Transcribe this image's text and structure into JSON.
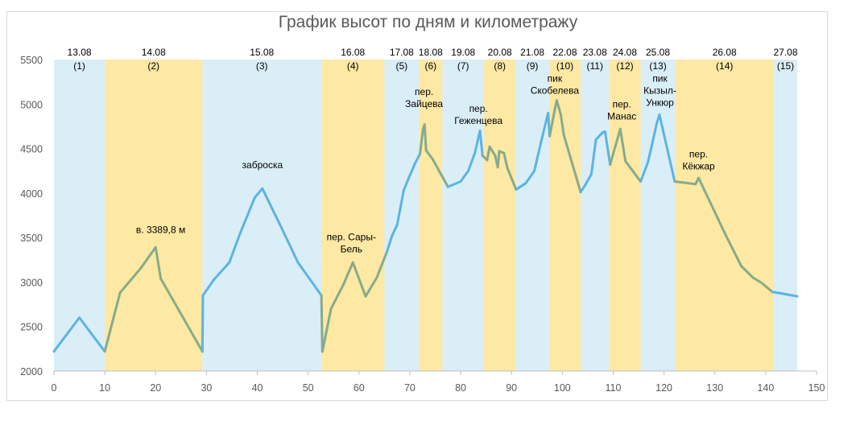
{
  "chart_data": {
    "type": "line",
    "title": "График высот по дням и километражу",
    "xlabel": "",
    "ylabel": "",
    "xlim": [
      0,
      150
    ],
    "ylim": [
      2000,
      5500
    ],
    "x_ticks": [
      0,
      10,
      20,
      30,
      40,
      50,
      60,
      70,
      80,
      90,
      100,
      110,
      120,
      130,
      140,
      150
    ],
    "y_ticks": [
      2000,
      2500,
      3000,
      3500,
      4000,
      4500,
      5000,
      5500
    ],
    "grid": false,
    "colors": {
      "line_blue_day": "#5bb4e0",
      "line_yellow_day": "#86ab8a",
      "band_blue": "#daeef7",
      "band_yellow": "#fde8a4"
    },
    "days": [
      {
        "date": "13.08",
        "num": "(1)",
        "x0": 0,
        "x1": 10,
        "color": "blue"
      },
      {
        "date": "14.08",
        "num": "(2)",
        "x0": 10,
        "x1": 29.2,
        "color": "yellow"
      },
      {
        "date": "15.08",
        "num": "(3)",
        "x0": 29.2,
        "x1": 52.6,
        "color": "blue"
      },
      {
        "date": "16.08",
        "num": "(4)",
        "x0": 52.6,
        "x1": 65,
        "color": "yellow"
      },
      {
        "date": "17.08",
        "num": "(5)",
        "x0": 65,
        "x1": 71.8,
        "color": "blue"
      },
      {
        "date": "18.08",
        "num": "(6)",
        "x0": 71.8,
        "x1": 76.4,
        "color": "yellow"
      },
      {
        "date": "19.08",
        "num": "(7)",
        "x0": 76.4,
        "x1": 84.6,
        "color": "blue"
      },
      {
        "date": "20.08",
        "num": "(8)",
        "x0": 84.6,
        "x1": 90.8,
        "color": "yellow"
      },
      {
        "date": "21.08",
        "num": "(9)",
        "x0": 90.8,
        "x1": 97.4,
        "color": "blue"
      },
      {
        "date": "22.08",
        "num": "(10)",
        "x0": 97.4,
        "x1": 103.6,
        "color": "yellow"
      },
      {
        "date": "23.08",
        "num": "(11)",
        "x0": 103.6,
        "x1": 109.2,
        "color": "blue"
      },
      {
        "date": "24.08",
        "num": "(12)",
        "x0": 109.2,
        "x1": 115.4,
        "color": "yellow"
      },
      {
        "date": "25.08",
        "num": "(13)",
        "x0": 115.4,
        "x1": 122.2,
        "color": "blue"
      },
      {
        "date": "26.08",
        "num": "(14)",
        "x0": 122.2,
        "x1": 141.6,
        "color": "yellow"
      },
      {
        "date": "27.08",
        "num": "(15)",
        "x0": 141.6,
        "x1": 146.2,
        "color": "blue"
      }
    ],
    "series": [
      {
        "values": [
          [
            0,
            2220
          ],
          [
            5,
            2600
          ],
          [
            10,
            2220
          ],
          [
            13,
            2880
          ],
          [
            17,
            3150
          ],
          [
            20,
            3390
          ],
          [
            21,
            3040
          ],
          [
            29.2,
            2220
          ],
          [
            29.3,
            2850
          ],
          [
            31.5,
            3030
          ],
          [
            34.5,
            3220
          ],
          [
            36.5,
            3530
          ],
          [
            39.5,
            3950
          ],
          [
            41,
            4050
          ],
          [
            44.5,
            3640
          ],
          [
            48,
            3220
          ],
          [
            52.6,
            2850
          ],
          [
            52.8,
            2220
          ],
          [
            54.5,
            2700
          ],
          [
            57,
            2980
          ],
          [
            58.8,
            3220
          ],
          [
            61.3,
            2840
          ],
          [
            63.5,
            3050
          ],
          [
            65.5,
            3340
          ],
          [
            66.5,
            3520
          ],
          [
            67.5,
            3640
          ],
          [
            68.8,
            4030
          ],
          [
            69.8,
            4170
          ],
          [
            71,
            4330
          ],
          [
            72,
            4440
          ],
          [
            72.6,
            4720
          ],
          [
            72.9,
            4770
          ],
          [
            73.2,
            4480
          ],
          [
            74.5,
            4380
          ],
          [
            77.5,
            4070
          ],
          [
            80,
            4130
          ],
          [
            81.5,
            4250
          ],
          [
            82.8,
            4450
          ],
          [
            83.8,
            4700
          ],
          [
            84.3,
            4420
          ],
          [
            85.2,
            4370
          ],
          [
            85.7,
            4520
          ],
          [
            86.8,
            4420
          ],
          [
            87.3,
            4290
          ],
          [
            87.6,
            4470
          ],
          [
            88.5,
            4450
          ],
          [
            89.2,
            4280
          ],
          [
            90.9,
            4040
          ],
          [
            92.8,
            4110
          ],
          [
            94.5,
            4250
          ],
          [
            95.8,
            4570
          ],
          [
            97.2,
            4900
          ],
          [
            97.5,
            4640
          ],
          [
            98.6,
            4960
          ],
          [
            98.9,
            5040
          ],
          [
            99.7,
            4880
          ],
          [
            100.3,
            4650
          ],
          [
            103.6,
            4010
          ],
          [
            104.5,
            4090
          ],
          [
            105.7,
            4210
          ],
          [
            106.6,
            4600
          ],
          [
            107.9,
            4680
          ],
          [
            108.4,
            4690
          ],
          [
            109.4,
            4320
          ],
          [
            111.4,
            4720
          ],
          [
            112.4,
            4360
          ],
          [
            115.4,
            4130
          ],
          [
            116.8,
            4340
          ],
          [
            117.3,
            4460
          ],
          [
            118.6,
            4790
          ],
          [
            119.1,
            4880
          ],
          [
            122.1,
            4130
          ],
          [
            126.2,
            4100
          ],
          [
            126.8,
            4170
          ],
          [
            132.2,
            3520
          ],
          [
            135.2,
            3180
          ],
          [
            137.5,
            3050
          ],
          [
            139.2,
            2990
          ],
          [
            141.3,
            2890
          ],
          [
            146.2,
            2840
          ]
        ]
      }
    ],
    "annotations": [
      {
        "lines": [
          "в. 3389,8 м"
        ],
        "x": 21,
        "y": 3550
      },
      {
        "lines": [
          "заброска"
        ],
        "x": 41,
        "y": 4280
      },
      {
        "lines": [
          "пер. Сары-",
          "Бель"
        ],
        "x": 58.5,
        "y": 3470
      },
      {
        "lines": [
          "пер.",
          "Зайцева"
        ],
        "x": 72.8,
        "y": 5100
      },
      {
        "lines": [
          "пер.",
          "Геженцева"
        ],
        "x": 83.5,
        "y": 4910
      },
      {
        "lines": [
          "пик",
          "Скобелева"
        ],
        "x": 98.5,
        "y": 5250
      },
      {
        "lines": [
          "пер.",
          "Манас"
        ],
        "x": 111.7,
        "y": 4960
      },
      {
        "lines": [
          "пик",
          "Кызыл-",
          "Ункюр"
        ],
        "x": 119.2,
        "y": 5250
      },
      {
        "lines": [
          "пер.",
          "Кёкжар"
        ],
        "x": 126.8,
        "y": 4400
      }
    ]
  }
}
